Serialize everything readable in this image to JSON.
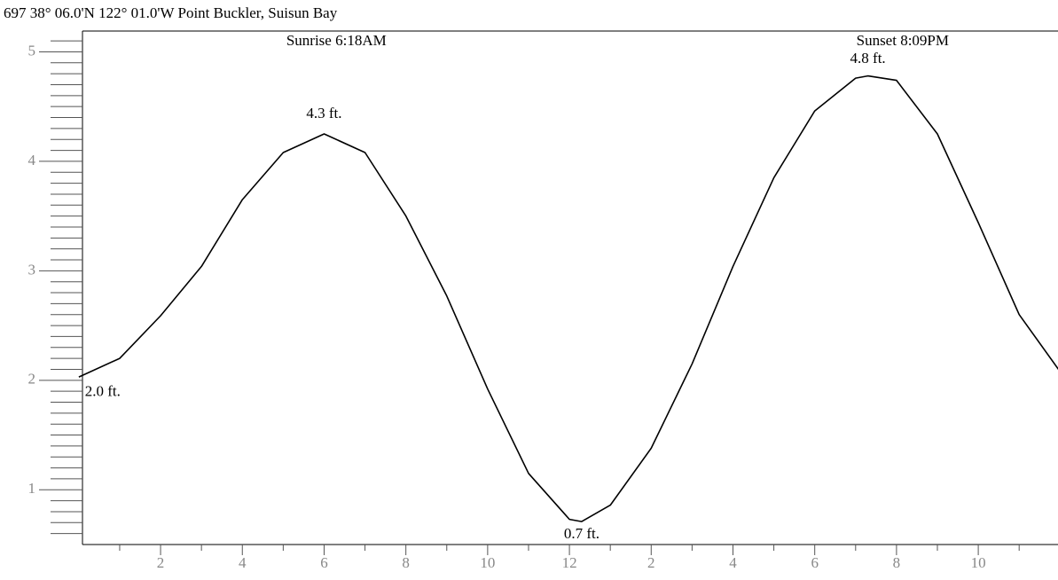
{
  "chart_data": {
    "type": "line",
    "title": "697  38° 06.0'N  122° 01.0'W  Point Buckler, Suisun Bay",
    "x": [
      0,
      1,
      2,
      3,
      4,
      5,
      6,
      7,
      8,
      9,
      10,
      11,
      12,
      12.3,
      13,
      14,
      15,
      16,
      17,
      18,
      19,
      19.3,
      20,
      21,
      22,
      23,
      24
    ],
    "values": [
      2.03,
      2.2,
      2.59,
      3.04,
      3.65,
      4.08,
      4.25,
      4.08,
      3.5,
      2.77,
      1.92,
      1.15,
      0.73,
      0.71,
      0.86,
      1.38,
      2.15,
      3.04,
      3.85,
      4.46,
      4.76,
      4.78,
      4.74,
      4.25,
      3.44,
      2.6,
      2.08
    ],
    "color": "#000000",
    "xlim": [
      0.09,
      23.95
    ],
    "ylim": [
      0.5,
      5.19
    ],
    "yticks": [
      1,
      2,
      3,
      4,
      5
    ],
    "yticks_minor": [
      0.6,
      0.7,
      0.8,
      0.9,
      1.1,
      1.2,
      1.3,
      1.4,
      1.5,
      1.6,
      1.7,
      1.8,
      1.9,
      2.1,
      2.2,
      2.3,
      2.4,
      2.5,
      2.6,
      2.7,
      2.8,
      2.9,
      3.1,
      3.2,
      3.3,
      3.4,
      3.5,
      3.6,
      3.7,
      3.8,
      3.9,
      4.1,
      4.2,
      4.3,
      4.4,
      4.5,
      4.6,
      4.7,
      4.8,
      4.9,
      5.1
    ],
    "xticks": [
      2,
      4,
      6,
      8,
      10,
      12,
      {
        "value": 14,
        "label": "2"
      },
      {
        "value": 16,
        "label": "4"
      },
      {
        "value": 18,
        "label": "6"
      },
      {
        "value": 20,
        "label": "8"
      },
      {
        "value": 22,
        "label": "10"
      }
    ],
    "xticks_minor": [
      1,
      3,
      5,
      7,
      9,
      11,
      13,
      15,
      17,
      19,
      21,
      23
    ],
    "extremes": [
      {
        "text": "2.0 ft.",
        "x": 0.15,
        "y": 2.0,
        "position": "below-right"
      },
      {
        "text": "4.3 ft.",
        "x": 6,
        "y": 4.3,
        "position": "above"
      },
      {
        "text": "0.7 ft.",
        "x": 12.3,
        "y": 0.7,
        "position": "below"
      },
      {
        "text": "4.8 ft.",
        "x": 19.3,
        "y": 4.8,
        "position": "above"
      }
    ],
    "sun_events": [
      {
        "text": "Sunrise 6:18AM",
        "x": 6.3
      },
      {
        "text": "Sunset 8:09PM",
        "x": 20.15
      }
    ]
  }
}
